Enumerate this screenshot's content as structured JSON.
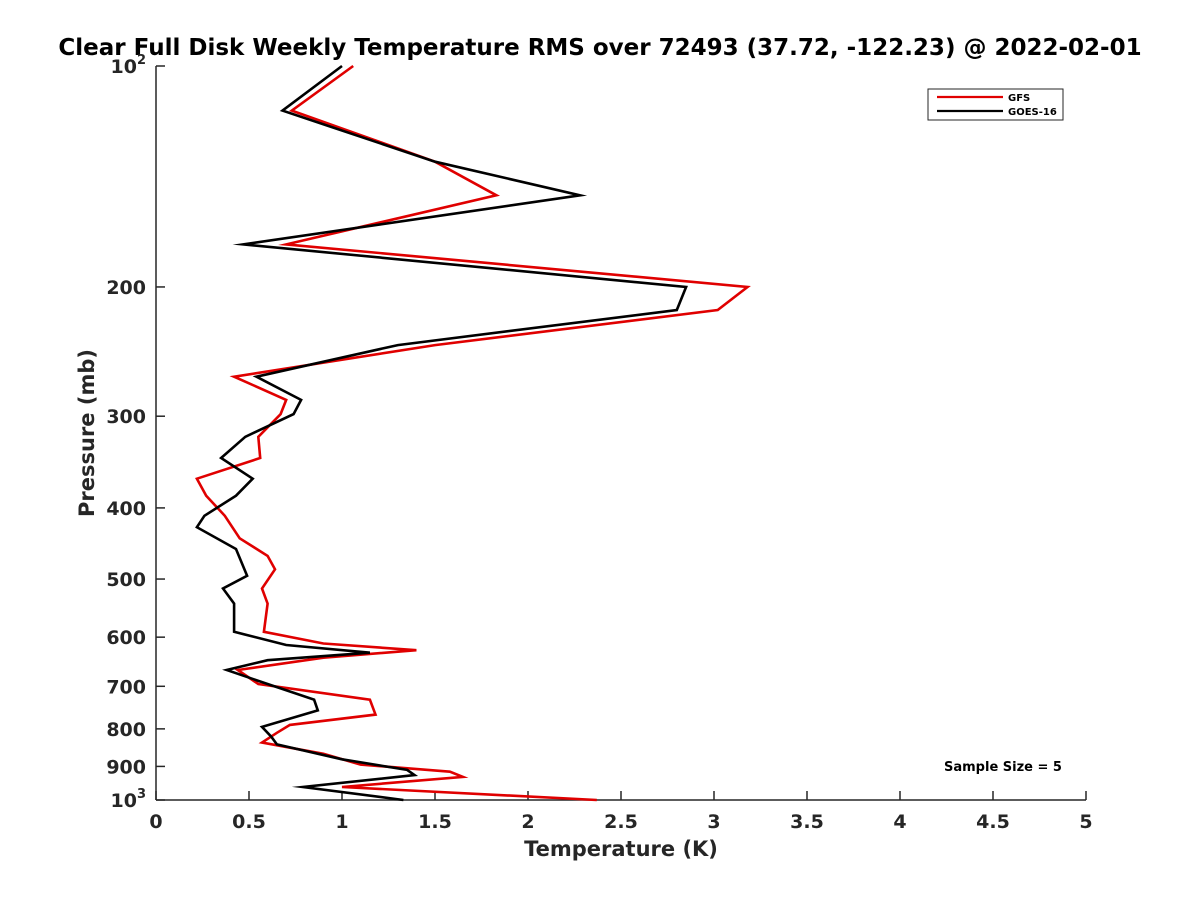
{
  "chart_data": {
    "type": "line",
    "title": "Clear Full Disk Weekly Temperature RMS over 72493 (37.72, -122.23) @ 2022-02-01",
    "xlabel": "Temperature (K)",
    "ylabel": "Pressure (mb)",
    "xlim": [
      0,
      5
    ],
    "ylim": [
      100,
      1000
    ],
    "y_scale": "log",
    "y_reversed": true,
    "x_ticks": [
      "0",
      "0.5",
      "1",
      "1.5",
      "2",
      "2.5",
      "3",
      "3.5",
      "4",
      "4.5",
      "5"
    ],
    "y_tick_values": [
      100,
      200,
      300,
      400,
      500,
      600,
      700,
      800,
      900,
      1000
    ],
    "y_tick_labels": [
      {
        "base": "10",
        "exp": "2"
      },
      {
        "base": "200",
        "exp": ""
      },
      {
        "base": "300",
        "exp": ""
      },
      {
        "base": "400",
        "exp": ""
      },
      {
        "base": "500",
        "exp": ""
      },
      {
        "base": "600",
        "exp": ""
      },
      {
        "base": "700",
        "exp": ""
      },
      {
        "base": "800",
        "exp": ""
      },
      {
        "base": "900",
        "exp": ""
      },
      {
        "base": "10",
        "exp": "3"
      }
    ],
    "legend_position": "top-right",
    "annotation": "Sample Size = 5",
    "series": [
      {
        "name": "GFS",
        "color": "#e00000",
        "points": [
          [
            1.06,
            100
          ],
          [
            0.73,
            115
          ],
          [
            1.5,
            135
          ],
          [
            1.83,
            150
          ],
          [
            0.7,
            175
          ],
          [
            3.18,
            200
          ],
          [
            3.02,
            215
          ],
          [
            1.5,
            240
          ],
          [
            0.42,
            265
          ],
          [
            0.7,
            285
          ],
          [
            0.67,
            298
          ],
          [
            0.55,
            320
          ],
          [
            0.56,
            342
          ],
          [
            0.22,
            365
          ],
          [
            0.27,
            385
          ],
          [
            0.37,
            410
          ],
          [
            0.45,
            440
          ],
          [
            0.6,
            465
          ],
          [
            0.64,
            485
          ],
          [
            0.57,
            515
          ],
          [
            0.6,
            540
          ],
          [
            0.58,
            590
          ],
          [
            0.9,
            612
          ],
          [
            1.4,
            625
          ],
          [
            0.9,
            640
          ],
          [
            0.44,
            665
          ],
          [
            0.55,
            695
          ],
          [
            1.15,
            730
          ],
          [
            1.18,
            765
          ],
          [
            0.72,
            790
          ],
          [
            0.65,
            810
          ],
          [
            0.57,
            835
          ],
          [
            0.9,
            865
          ],
          [
            1.1,
            895
          ],
          [
            1.58,
            915
          ],
          [
            1.65,
            930
          ],
          [
            1.0,
            960
          ],
          [
            2.37,
            1000
          ]
        ]
      },
      {
        "name": "GOES-16",
        "color": "#000000",
        "points": [
          [
            1.0,
            100
          ],
          [
            0.68,
            115
          ],
          [
            1.5,
            135
          ],
          [
            2.28,
            150
          ],
          [
            0.47,
            175
          ],
          [
            2.85,
            200
          ],
          [
            2.8,
            215
          ],
          [
            1.3,
            240
          ],
          [
            0.54,
            265
          ],
          [
            0.78,
            285
          ],
          [
            0.74,
            298
          ],
          [
            0.48,
            320
          ],
          [
            0.35,
            342
          ],
          [
            0.52,
            365
          ],
          [
            0.43,
            385
          ],
          [
            0.26,
            410
          ],
          [
            0.22,
            425
          ],
          [
            0.43,
            455
          ],
          [
            0.49,
            495
          ],
          [
            0.36,
            515
          ],
          [
            0.42,
            540
          ],
          [
            0.42,
            590
          ],
          [
            0.7,
            615
          ],
          [
            1.15,
            630
          ],
          [
            0.6,
            645
          ],
          [
            0.38,
            665
          ],
          [
            0.6,
            695
          ],
          [
            0.85,
            730
          ],
          [
            0.87,
            755
          ],
          [
            0.57,
            795
          ],
          [
            0.62,
            820
          ],
          [
            0.65,
            840
          ],
          [
            1.0,
            880
          ],
          [
            1.35,
            910
          ],
          [
            1.39,
            925
          ],
          [
            0.79,
            960
          ],
          [
            1.33,
            1000
          ]
        ]
      }
    ]
  }
}
